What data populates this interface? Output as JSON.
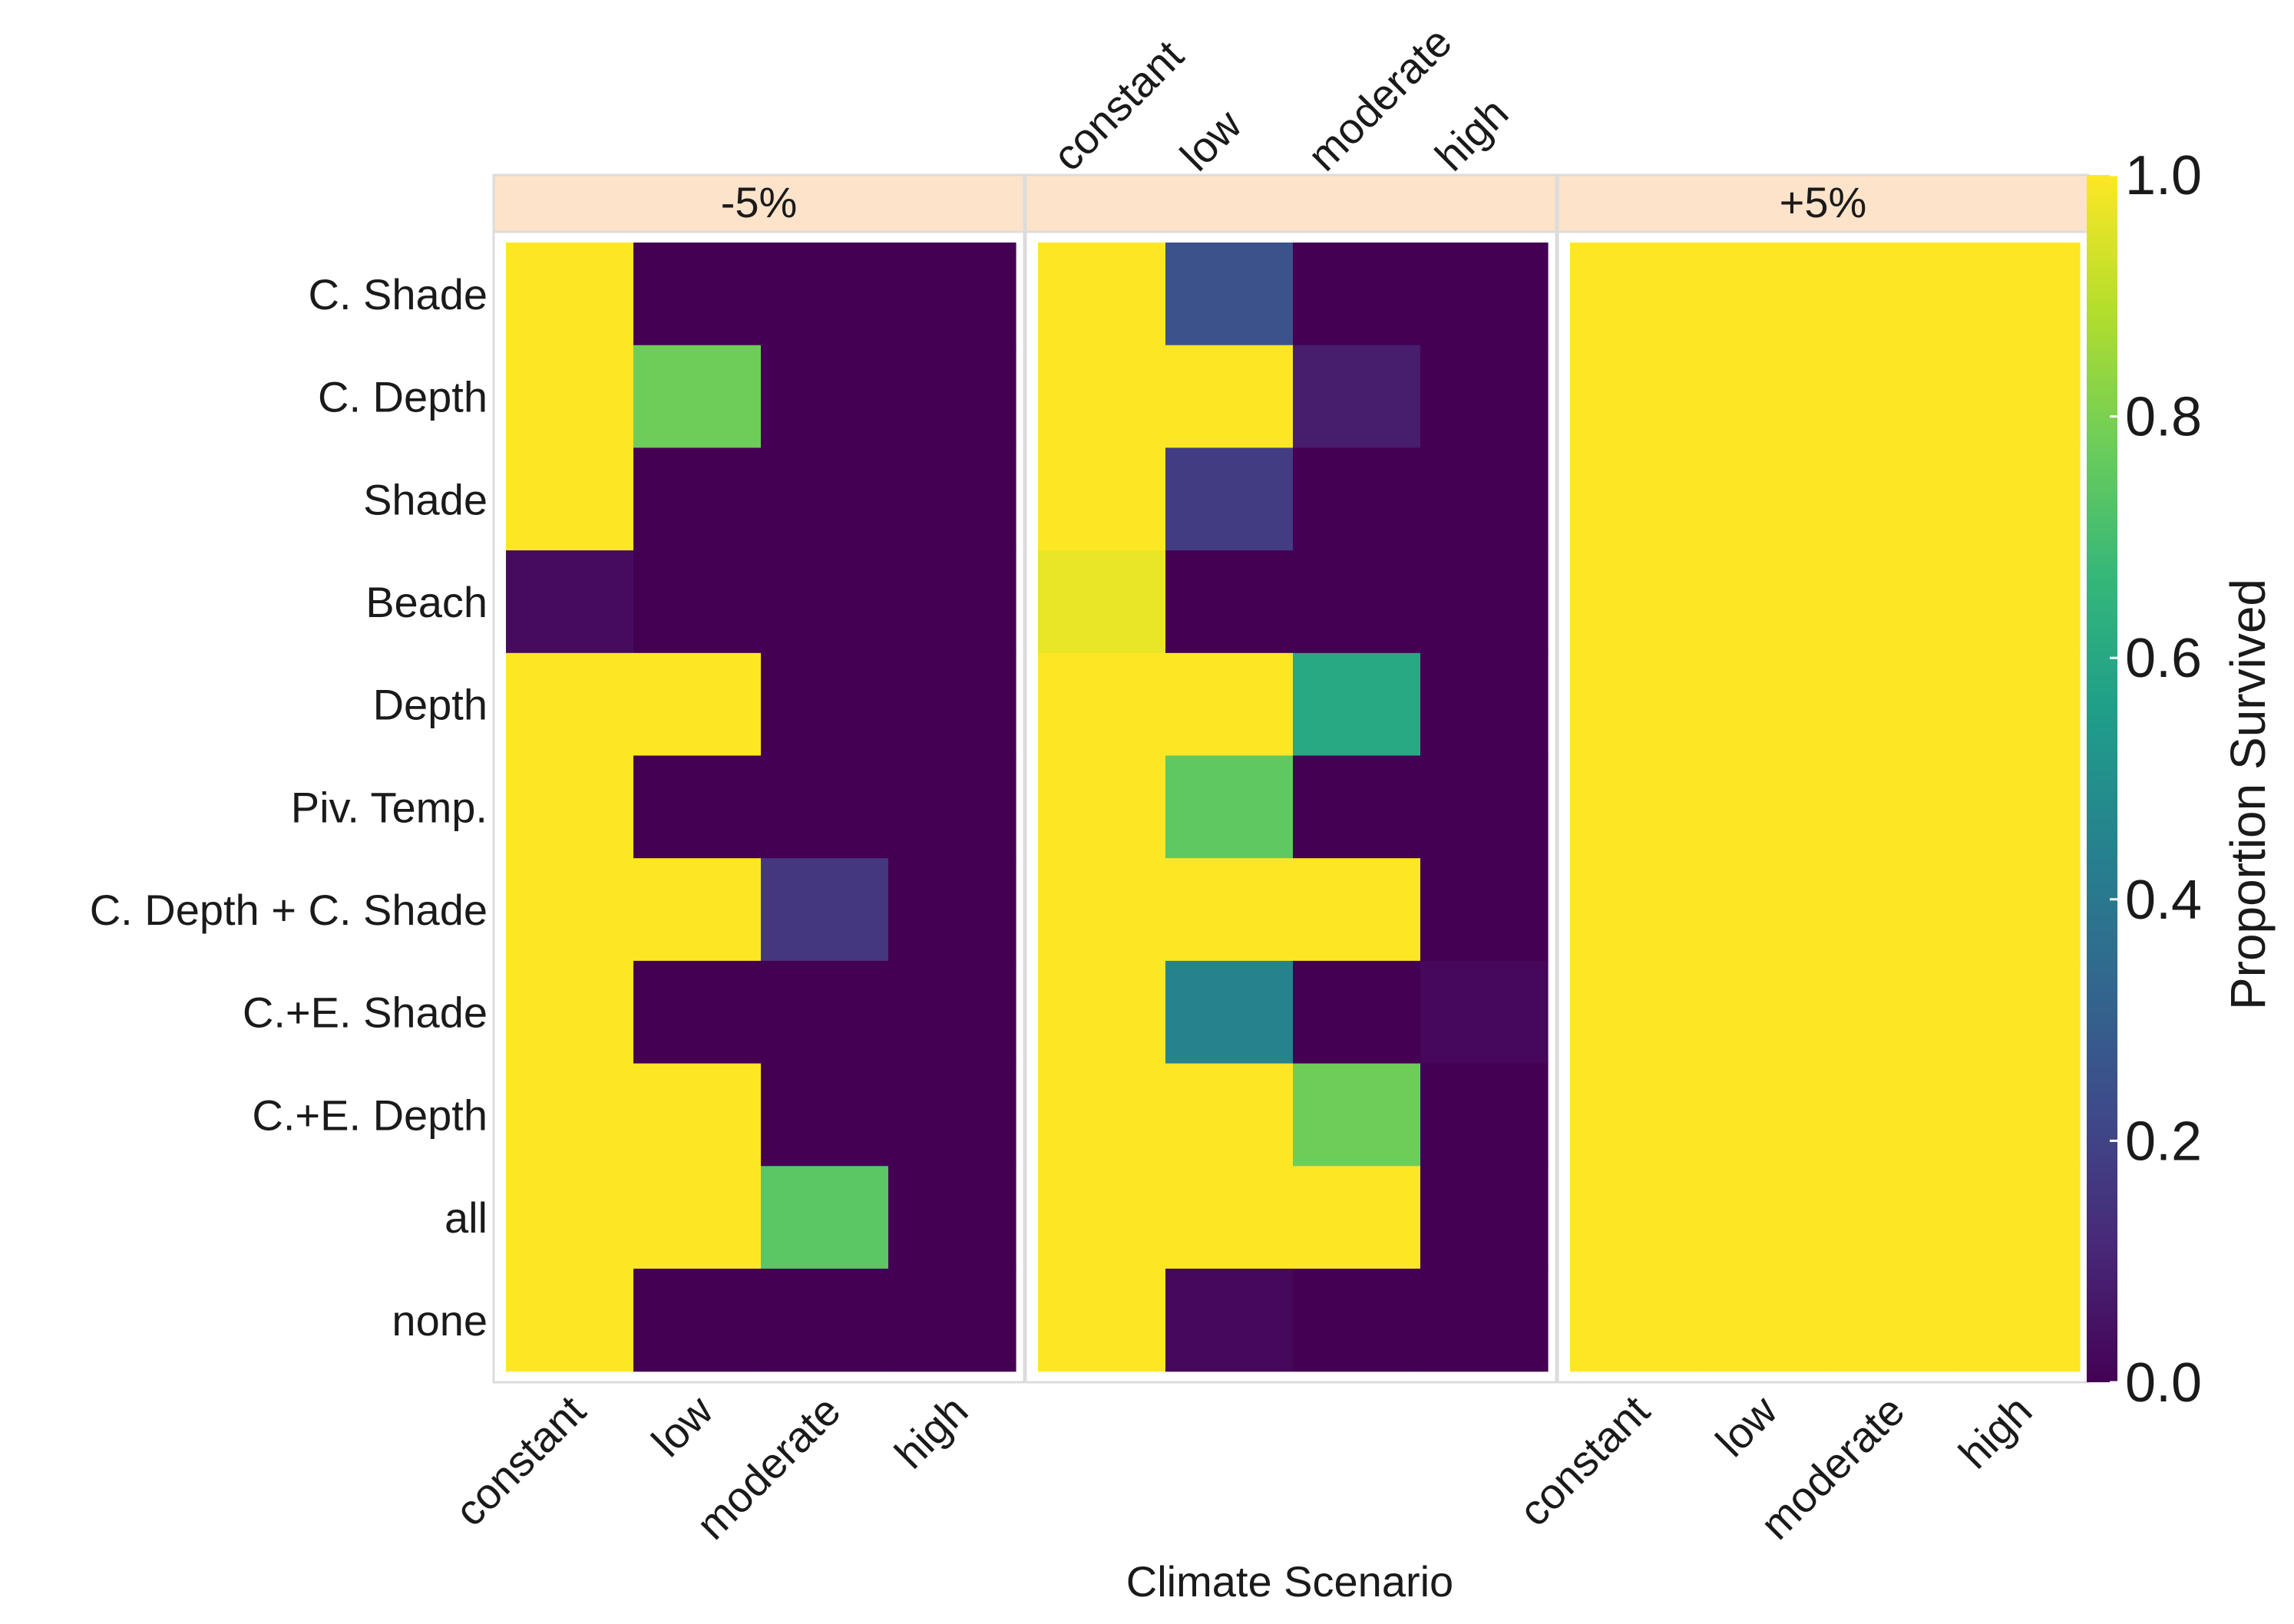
{
  "chart_data": {
    "type": "heatmap",
    "xlabel": "Climate Scenario",
    "legend_title": "Proportion Survived",
    "x_categories": [
      "constant",
      "low",
      "moderate",
      "high"
    ],
    "y_categories": [
      "C. Shade",
      "C. Depth",
      "Shade",
      "Beach",
      "Depth",
      "Piv. Temp.",
      "C. Depth + C. Shade",
      "C.+E. Shade",
      "C.+E. Depth",
      "all",
      "none"
    ],
    "color_range": [
      0.0,
      1.0
    ],
    "colorbar_ticks": [
      "0.0",
      "0.2",
      "0.4",
      "0.6",
      "0.8",
      "1.0"
    ],
    "panels": [
      {
        "label": "-5%",
        "values": [
          [
            1.0,
            0.0,
            0.0,
            0.0
          ],
          [
            1.0,
            0.78,
            0.0,
            0.0
          ],
          [
            1.0,
            0.0,
            0.0,
            0.0
          ],
          [
            0.03,
            0.0,
            0.0,
            0.0
          ],
          [
            1.0,
            1.0,
            0.0,
            0.0
          ],
          [
            1.0,
            0.0,
            0.0,
            0.0
          ],
          [
            1.0,
            1.0,
            0.16,
            0.0
          ],
          [
            1.0,
            0.0,
            0.0,
            0.0
          ],
          [
            1.0,
            1.0,
            0.0,
            0.0
          ],
          [
            1.0,
            1.0,
            0.74,
            0.0
          ],
          [
            1.0,
            0.0,
            0.0,
            0.0
          ]
        ]
      },
      {
        "label": "",
        "values": [
          [
            1.0,
            0.25,
            0.0,
            0.0
          ],
          [
            1.0,
            1.0,
            0.08,
            0.0
          ],
          [
            1.0,
            0.18,
            0.0,
            0.0
          ],
          [
            0.97,
            0.0,
            0.0,
            0.0
          ],
          [
            1.0,
            1.0,
            0.6,
            0.0
          ],
          [
            1.0,
            0.75,
            0.0,
            0.0
          ],
          [
            1.0,
            1.0,
            1.0,
            0.0
          ],
          [
            1.0,
            0.45,
            0.0,
            0.02
          ],
          [
            1.0,
            1.0,
            0.78,
            0.0
          ],
          [
            1.0,
            1.0,
            1.0,
            0.0
          ],
          [
            1.0,
            0.02,
            0.0,
            0.0
          ]
        ]
      },
      {
        "label": "+5%",
        "values": [
          [
            1.0,
            1.0,
            1.0,
            1.0
          ],
          [
            1.0,
            1.0,
            1.0,
            1.0
          ],
          [
            1.0,
            1.0,
            1.0,
            1.0
          ],
          [
            1.0,
            1.0,
            1.0,
            1.0
          ],
          [
            1.0,
            1.0,
            1.0,
            1.0
          ],
          [
            1.0,
            1.0,
            1.0,
            1.0
          ],
          [
            1.0,
            1.0,
            1.0,
            1.0
          ],
          [
            1.0,
            1.0,
            1.0,
            1.0
          ],
          [
            1.0,
            1.0,
            1.0,
            1.0
          ],
          [
            1.0,
            1.0,
            1.0,
            1.0
          ],
          [
            1.0,
            1.0,
            1.0,
            1.0
          ]
        ]
      }
    ]
  }
}
